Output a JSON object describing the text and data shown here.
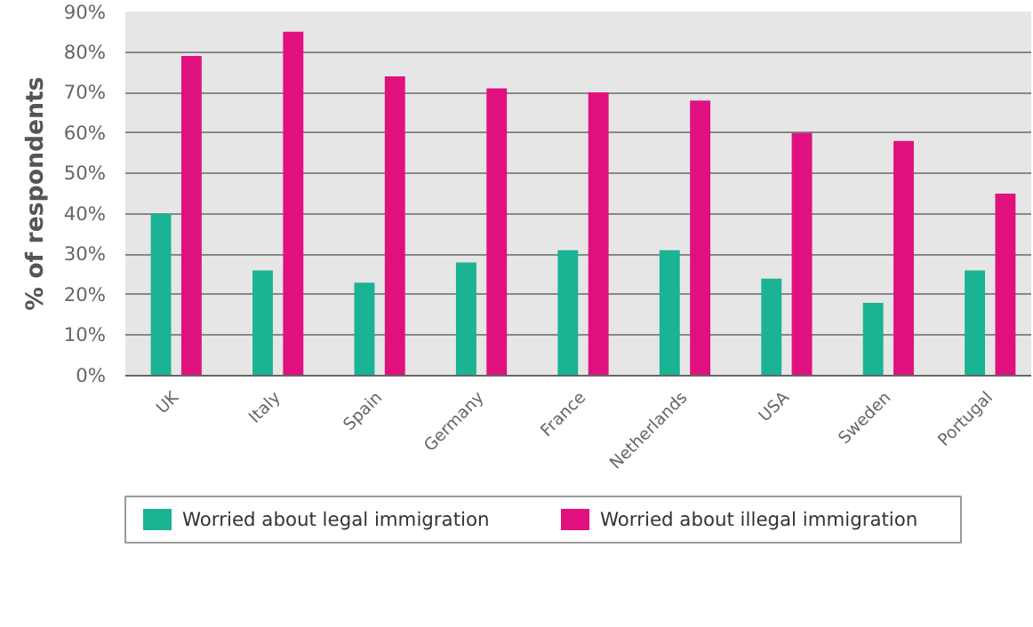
{
  "chart_data": {
    "type": "bar",
    "ylabel": "% of respondents",
    "categories": [
      "UK",
      "Italy",
      "Spain",
      "Germany",
      "France",
      "Netherlands",
      "USA",
      "Sweden",
      "Portugal"
    ],
    "series": [
      {
        "name": "Worried about legal immigration",
        "color": "#1ab394",
        "values": [
          40,
          26,
          23,
          28,
          31,
          31,
          24,
          18,
          26
        ]
      },
      {
        "name": "Worried about illegal immigration",
        "color": "#e0117f",
        "values": [
          79,
          85,
          74,
          71,
          70,
          68,
          60,
          58,
          45
        ]
      }
    ],
    "ylim": [
      0,
      90
    ],
    "yticks": [
      {
        "value": 0,
        "label": "0%"
      },
      {
        "value": 10,
        "label": "10%"
      },
      {
        "value": 20,
        "label": "20%"
      },
      {
        "value": 30,
        "label": "30%"
      },
      {
        "value": 40,
        "label": "40%"
      },
      {
        "value": 50,
        "label": "50%"
      },
      {
        "value": 60,
        "label": "60%"
      },
      {
        "value": 70,
        "label": "70%"
      },
      {
        "value": 80,
        "label": "80%"
      },
      {
        "value": 90,
        "label": "90%"
      }
    ],
    "grid": "y",
    "legend": "bottom"
  }
}
